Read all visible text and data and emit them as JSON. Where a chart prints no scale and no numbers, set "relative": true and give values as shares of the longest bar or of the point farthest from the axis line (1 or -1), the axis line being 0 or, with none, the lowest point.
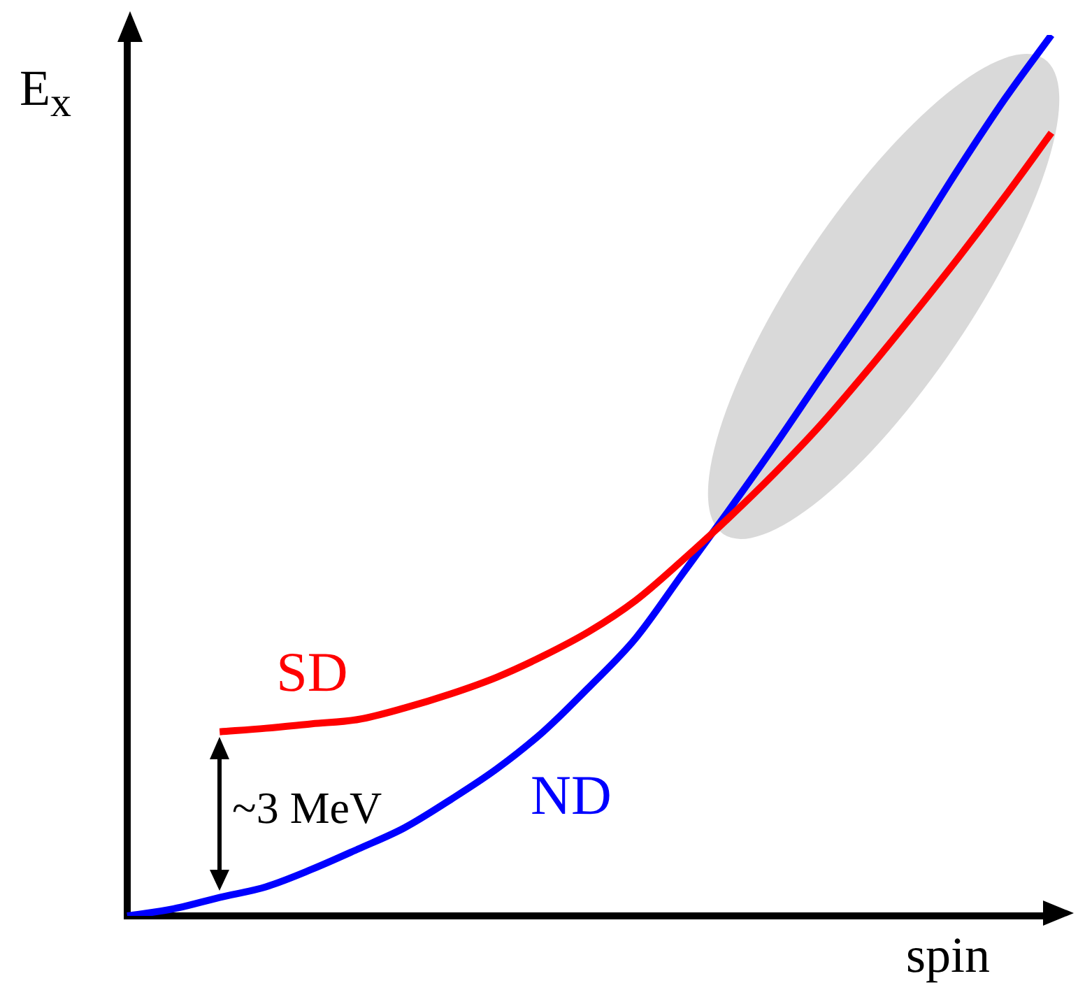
{
  "chart_data": {
    "type": "line",
    "relative": true,
    "xlabel": "spin",
    "ylabel": "E$_{x}$",
    "annotations": [
      "~3 MeV"
    ],
    "categories": [
      null,
      null,
      null,
      null,
      null,
      null,
      null,
      null,
      null,
      null,
      null,
      null,
      null,
      null,
      null,
      null,
      null,
      null,
      null,
      null,
      null
    ],
    "series": [
      {
        "name": "SD",
        "color": "#ff0000",
        "values": [
          null,
          null,
          0.209,
          0.213,
          0.218,
          0.223,
          0.236,
          0.252,
          0.271,
          0.295,
          0.323,
          0.358,
          0.403,
          0.451,
          0.502,
          0.557,
          0.618,
          0.682,
          0.748,
          0.817,
          0.889
        ]
      },
      {
        "name": "ND",
        "color": "#0000ff",
        "values": [
          0,
          0.008,
          0.021,
          0.033,
          0.053,
          0.076,
          0.1,
          0.132,
          0.167,
          0.209,
          0.26,
          0.315,
          0.387,
          0.459,
          0.533,
          0.61,
          0.686,
          0.766,
          0.849,
          0.928,
          1
        ]
      }
    ],
    "grid": false,
    "legend": false,
    "marker": "none",
    "line_style": "solid"
  }
}
